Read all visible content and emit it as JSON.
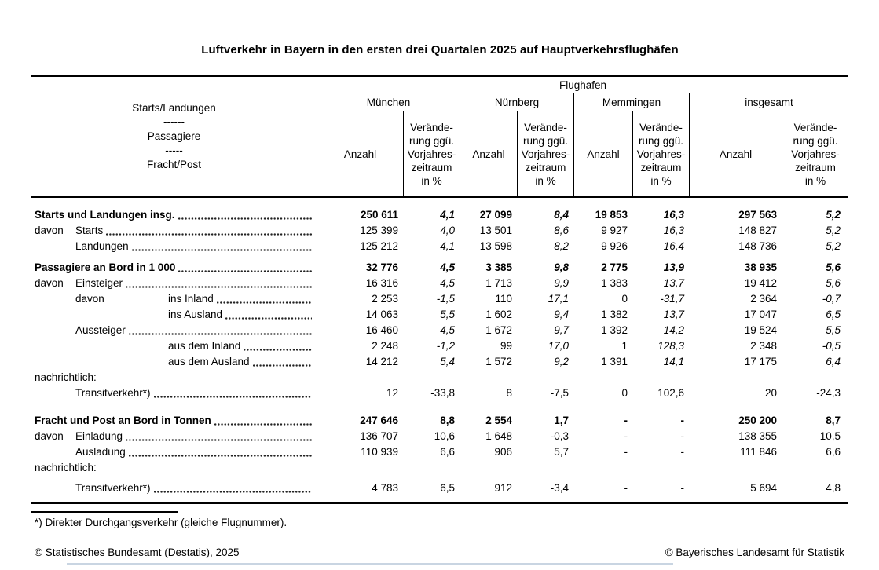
{
  "title": "Luftverkehr in Bayern in den ersten drei Quartalen 2025 auf Hauptverkehrsflughäfen",
  "header": {
    "stub_lines": [
      "Starts/Landungen",
      "------",
      "Passagiere",
      "-----",
      "Fracht/Post"
    ],
    "group_label": "Flughafen",
    "airports": [
      "München",
      "Nürnberg",
      "Memmingen",
      "insgesamt"
    ],
    "anzahl_label": "Anzahl",
    "change_label": "Verände-\nrung ggü.\nVorjahres-\nzeitraum\nin %"
  },
  "table": {
    "rows": [
      {
        "label": "Starts und Landungen insg.",
        "bold": true,
        "indent": 0,
        "leaders": true,
        "italic_pct": true,
        "mt": 0,
        "values": [
          "250 611",
          "4,1",
          "27 099",
          "8,4",
          "19 853",
          "16,3",
          "297 563",
          "5,2"
        ]
      },
      {
        "pre": "davon",
        "preWidth": 52,
        "label": "Starts",
        "indent": 0,
        "leaders": true,
        "italic_pct": true,
        "values": [
          "125 399",
          "4,0",
          "13 501",
          "8,6",
          "9 927",
          "16,3",
          "148 827",
          "5,2"
        ]
      },
      {
        "label": "Landungen",
        "indent": 52,
        "leaders": true,
        "italic_pct": true,
        "values": [
          "125 212",
          "4,1",
          "13 598",
          "8,2",
          "9 926",
          "16,4",
          "148 736",
          "5,2"
        ]
      },
      {
        "label": "Passagiere an Bord in 1 000",
        "bold": true,
        "indent": 0,
        "leaders": true,
        "italic_pct": true,
        "mt": 7,
        "values": [
          "32 776",
          "4,5",
          "3 385",
          "9,8",
          "2 775",
          "13,9",
          "38 935",
          "5,6"
        ]
      },
      {
        "pre": "davon",
        "preWidth": 52,
        "label": "Einsteiger",
        "indent": 0,
        "leaders": true,
        "italic_pct": true,
        "values": [
          "16 316",
          "4,5",
          "1 713",
          "9,9",
          "1 383",
          "13,7",
          "19 412",
          "5,6"
        ]
      },
      {
        "pre": "davon",
        "preWidth": 118,
        "label": "ins Inland",
        "indent": 52,
        "leaders": true,
        "italic_pct": true,
        "values": [
          "2 253",
          "-1,5",
          "110",
          "17,1",
          "0",
          "-31,7",
          "2 364",
          "-0,7"
        ]
      },
      {
        "label": "ins Ausland",
        "indent": 170,
        "leaders": true,
        "italic_pct": true,
        "values": [
          "14 063",
          "5,5",
          "1 602",
          "9,4",
          "1 382",
          "13,7",
          "17 047",
          "6,5"
        ]
      },
      {
        "label": "Aussteiger",
        "indent": 52,
        "leaders": true,
        "italic_pct": true,
        "values": [
          "16 460",
          "4,5",
          "1 672",
          "9,7",
          "1 392",
          "14,2",
          "19 524",
          "5,5"
        ]
      },
      {
        "label": "aus dem Inland",
        "indent": 170,
        "leaders": true,
        "italic_pct": true,
        "values": [
          "2 248",
          "-1,2",
          "99",
          "17,0",
          "1",
          "128,3",
          "2 348",
          "-0,5"
        ]
      },
      {
        "label": "aus dem Ausland",
        "indent": 170,
        "leaders": true,
        "italic_pct": true,
        "values": [
          "14 212",
          "5,4",
          "1 572",
          "9,2",
          "1 391",
          "14,1",
          "17 175",
          "6,4"
        ]
      },
      {
        "label": "nachrichtlich:",
        "indent": 0,
        "leaders": false,
        "values": null
      },
      {
        "label": "Transitverkehr*)",
        "indent": 52,
        "leaders": true,
        "italic_pct": false,
        "values": [
          "12",
          "-33,8",
          "8",
          "-7,5",
          "0",
          "102,6",
          "20",
          "-24,3"
        ]
      },
      {
        "label": "Fracht und Post an Bord in Tonnen",
        "bold": true,
        "indent": 0,
        "leaders": true,
        "italic_pct": false,
        "mt": 15,
        "values": [
          "247 646",
          "8,8",
          "2 554",
          "1,7",
          "-",
          "-",
          "250 200",
          "8,7"
        ]
      },
      {
        "pre": "davon",
        "preWidth": 52,
        "label": "Einladung",
        "indent": 0,
        "leaders": true,
        "italic_pct": false,
        "values": [
          "136 707",
          "10,6",
          "1 648",
          "-0,3",
          "-",
          "-",
          "138 355",
          "10,5"
        ]
      },
      {
        "label": "Ausladung",
        "indent": 52,
        "leaders": true,
        "italic_pct": false,
        "values": [
          "110 939",
          "6,6",
          "906",
          "5,7",
          "-",
          "-",
          "111 846",
          "6,6"
        ]
      },
      {
        "label": "nachrichtlich:",
        "indent": 0,
        "leaders": false,
        "values": null
      },
      {
        "label": "Transitverkehr*)",
        "indent": 52,
        "leaders": true,
        "italic_pct": false,
        "mt": 6,
        "values": [
          "4 783",
          "6,5",
          "912",
          "-3,4",
          "-",
          "-",
          "5 694",
          "4,8"
        ]
      }
    ]
  },
  "footnote": "*) Direkter Durchgangsverkehr (gleiche Flugnummer).",
  "copyright_left": "© Statistisches Bundesamt (Destatis), 2025",
  "copyright_right": "© Bayerisches Landesamt für Statistik",
  "colors": {
    "text": "#000000",
    "background": "#ffffff",
    "bottom_hairline": "#c9d5e2"
  }
}
